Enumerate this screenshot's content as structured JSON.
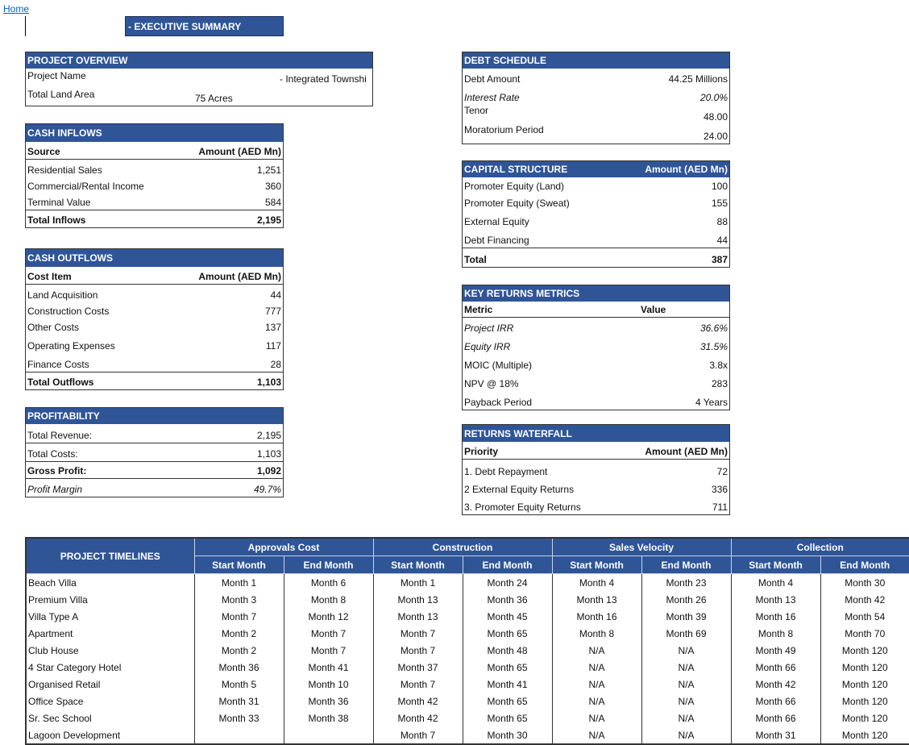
{
  "home_link": "Home",
  "title": "- EXECUTIVE SUMMARY",
  "colors": {
    "header_bg": "#2F5597",
    "header_text": "#FFFFFF",
    "link": "#0563C1"
  },
  "project_overview": {
    "title": "PROJECT OVERVIEW",
    "rows": [
      {
        "label": "Project Name",
        "value": "- Integrated Townshi"
      },
      {
        "label": "Total Land Area",
        "value": "75 Acres"
      }
    ]
  },
  "cash_inflows": {
    "title": "CASH INFLOWS",
    "col1": "Source",
    "col2": "Amount (AED Mn)",
    "rows": [
      {
        "label": "Residential Sales",
        "value": "1,251"
      },
      {
        "label": "Commercial/Rental Income",
        "value": "360"
      },
      {
        "label": "Terminal Value",
        "value": "584"
      }
    ],
    "total": {
      "label": "Total Inflows",
      "value": "2,195"
    }
  },
  "cash_outflows": {
    "title": "CASH OUTFLOWS",
    "col1": "Cost Item",
    "col2": "Amount (AED Mn)",
    "rows": [
      {
        "label": "Land Acquisition",
        "value": "44"
      },
      {
        "label": "Construction Costs",
        "value": "777"
      },
      {
        "label": "Other Costs",
        "value": "137"
      },
      {
        "label": "Operating Expenses",
        "value": "117"
      },
      {
        "label": "Finance Costs",
        "value": "28"
      }
    ],
    "total": {
      "label": "Total Outflows",
      "value": "1,103"
    }
  },
  "profitability": {
    "title": "PROFITABILITY",
    "rows": [
      {
        "label": "Total Revenue:",
        "value": "2,195"
      },
      {
        "label": "Total Costs:",
        "value": "1,103"
      },
      {
        "label": "Gross Profit:",
        "value": "1,092"
      },
      {
        "label": "Profit Margin",
        "value": "49.7%"
      }
    ]
  },
  "debt_schedule": {
    "title": "DEBT SCHEDULE",
    "rows": [
      {
        "label": "Debt Amount",
        "value": "44.25 Millions"
      },
      {
        "label": "Interest Rate",
        "value": "20.0%"
      },
      {
        "label": "Tenor",
        "value": "48.00"
      },
      {
        "label": "Moratorium Period",
        "value": "24.00"
      }
    ]
  },
  "capital_structure": {
    "title": "CAPITAL STRUCTURE",
    "col2": "Amount (AED Mn)",
    "rows": [
      {
        "label": "Promoter Equity (Land)",
        "value": "100"
      },
      {
        "label": "Promoter Equity (Sweat)",
        "value": "155"
      },
      {
        "label": "External Equity",
        "value": "88"
      },
      {
        "label": "Debt Financing",
        "value": "44"
      }
    ],
    "total": {
      "label": "Total",
      "value": "387"
    }
  },
  "key_returns": {
    "title": "KEY RETURNS METRICS",
    "col1": "Metric",
    "col2": "Value",
    "rows": [
      {
        "label": "Project IRR",
        "value": "36.6%"
      },
      {
        "label": "Equity IRR",
        "value": "31.5%"
      },
      {
        "label": "MOIC (Multiple)",
        "value": "3.8x"
      },
      {
        "label": "NPV @ 18%",
        "value": "283"
      },
      {
        "label": "Payback Period",
        "value": "4 Years"
      }
    ]
  },
  "returns_waterfall": {
    "title": "RETURNS WATERFALL",
    "col1": "Priority",
    "col2": "Amount (AED Mn)",
    "rows": [
      {
        "label": "1. Debt Repayment",
        "value": "72"
      },
      {
        "label": "2  External Equity Returns",
        "value": "336"
      },
      {
        "label": "3. Promoter Equity Returns",
        "value": "711"
      }
    ]
  },
  "timelines": {
    "title": "PROJECT TIMELINES",
    "groups": [
      "Approvals Cost",
      "Construction",
      "Sales Velocity",
      "Collection"
    ],
    "subheaders": [
      "Start Month",
      "End Month"
    ],
    "rows": [
      [
        "Beach Villa",
        "Month 1",
        "Month 6",
        "Month 1",
        "Month 24",
        "Month 4",
        "Month 23",
        "Month 4",
        "Month 30"
      ],
      [
        "Premium Villa",
        "Month 3",
        "Month 8",
        "Month 13",
        "Month 36",
        "Month 13",
        "Month 26",
        "Month 13",
        "Month 42"
      ],
      [
        "Villa Type A",
        "Month 7",
        "Month 12",
        "Month 13",
        "Month 45",
        "Month 16",
        "Month 39",
        "Month 16",
        "Month 54"
      ],
      [
        "Apartment",
        "Month 2",
        "Month 7",
        "Month 7",
        "Month 65",
        "Month 8",
        "Month 69",
        "Month 8",
        "Month 70"
      ],
      [
        "Club House",
        "Month 2",
        "Month 7",
        "Month 7",
        "Month 48",
        "N/A",
        "N/A",
        "Month 49",
        "Month 120"
      ],
      [
        "4 Star Category Hotel",
        "Month 36",
        "Month 41",
        "Month 37",
        "Month 65",
        "N/A",
        "N/A",
        "Month 66",
        "Month 120"
      ],
      [
        "Organised Retail",
        "Month 5",
        "Month 10",
        "Month 7",
        "Month 41",
        "N/A",
        "N/A",
        "Month 42",
        "Month 120"
      ],
      [
        "Office Space",
        "Month 31",
        "Month 36",
        "Month 42",
        "Month 65",
        "N/A",
        "N/A",
        "Month 66",
        "Month 120"
      ],
      [
        "Sr. Sec School",
        "Month 33",
        "Month 38",
        "Month 42",
        "Month 65",
        "N/A",
        "N/A",
        "Month 66",
        "Month 120"
      ],
      [
        "Lagoon Development",
        "",
        "",
        "Month 7",
        "Month 30",
        "N/A",
        "N/A",
        "Month 31",
        "Month 120"
      ]
    ]
  }
}
